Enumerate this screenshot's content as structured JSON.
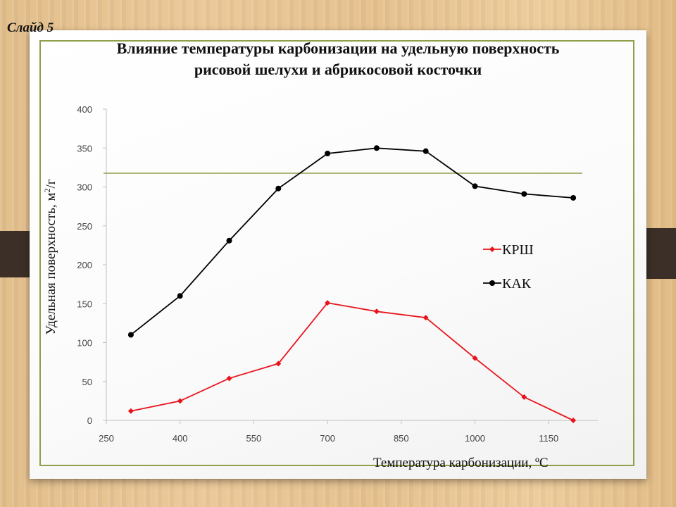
{
  "slide": {
    "label": "Слайд 5"
  },
  "chart_data": {
    "type": "line",
    "title_line1": "Влияние температуры карбонизации на удельную поверхность",
    "title_line2": "рисовой шелухи и абрикосовой косточки",
    "xlabel": "Температура карбонизации, ºС",
    "ylabel_main": "Удельная поверхность, м",
    "ylabel_sup": "2",
    "ylabel_tail": "/г",
    "xlim": [
      250,
      1250
    ],
    "ylim": [
      0,
      400
    ],
    "xticks": [
      250,
      400,
      550,
      700,
      850,
      1000,
      1150
    ],
    "yticks": [
      0,
      50,
      100,
      150,
      200,
      250,
      300,
      350,
      400
    ],
    "grid": false,
    "legend_position": "right",
    "x": [
      300,
      400,
      500,
      600,
      700,
      800,
      900,
      1000,
      1100,
      1200
    ],
    "series": [
      {
        "name": "КРШ",
        "color": "#e8141c",
        "marker": "diamond",
        "values": [
          12,
          25,
          54,
          73,
          151,
          140,
          132,
          80,
          30,
          0
        ]
      },
      {
        "name": "КАК",
        "color": "#000000",
        "marker": "circle",
        "values": [
          110,
          160,
          231,
          298,
          343,
          350,
          346,
          301,
          291,
          286
        ]
      }
    ],
    "annotations": {
      "reference_line_color": "#8ea04a"
    }
  }
}
